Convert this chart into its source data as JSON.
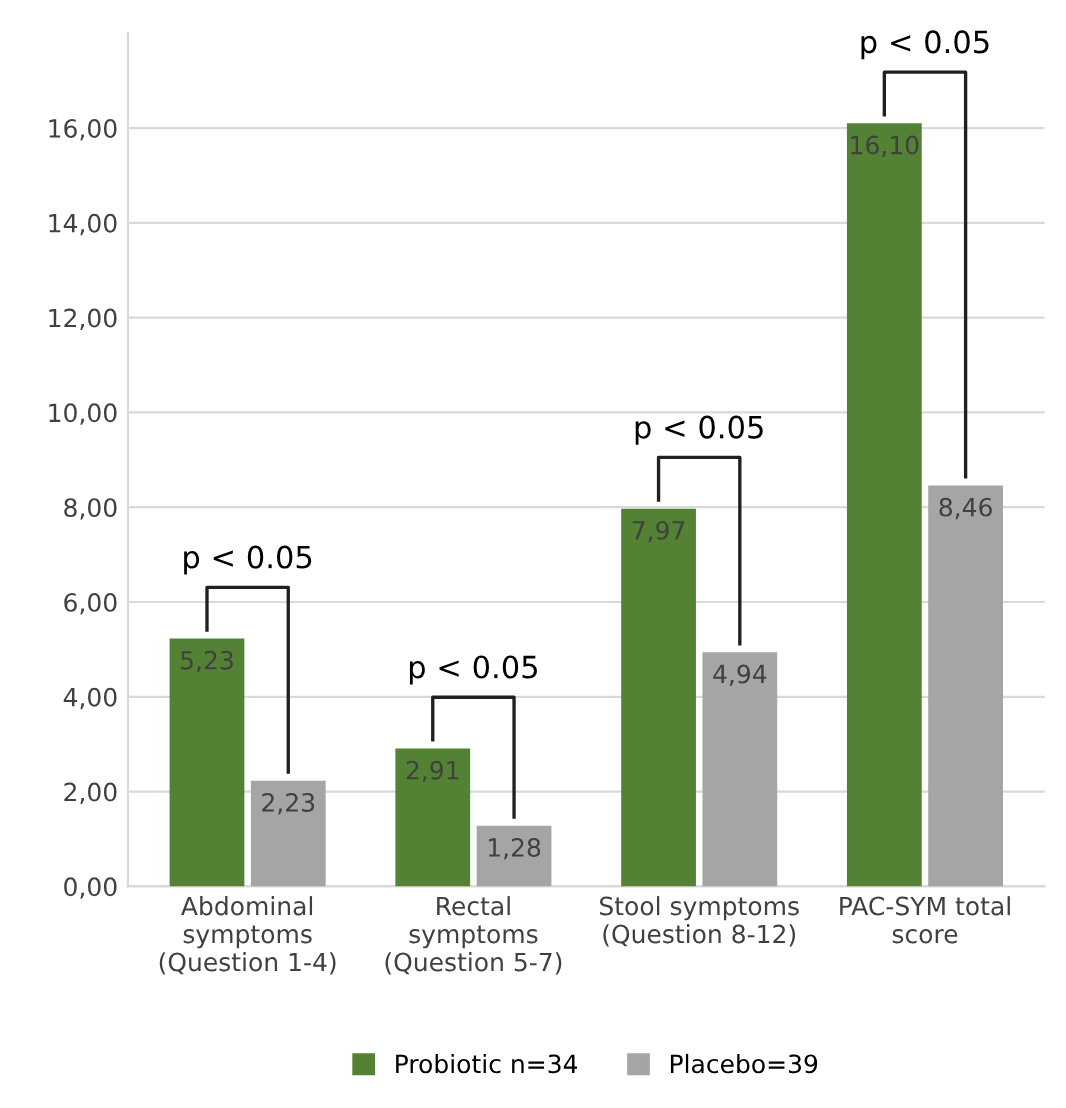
{
  "chart_data": {
    "type": "bar",
    "categories": [
      "Abdominal\nsymptoms\n(Question 1-4)",
      "Rectal\nsymptoms\n(Question 5-7)",
      "Stool symptoms\n(Question 8-12)",
      "PAC-SYM total\nscore"
    ],
    "series": [
      {
        "name": "Probiotic n=34",
        "color": "#548235",
        "values": [
          5.23,
          2.91,
          7.97,
          16.1
        ],
        "value_labels": [
          "5,23",
          "2,91",
          "7,97",
          "16,10"
        ]
      },
      {
        "name": "Placebo=39",
        "color": "#a5a5a5",
        "values": [
          2.23,
          1.28,
          4.94,
          8.46
        ],
        "value_labels": [
          "2,23",
          "1,28",
          "4,94",
          "8,46"
        ]
      }
    ],
    "ylim": [
      0,
      18
    ],
    "yticks": [
      {
        "value": 0,
        "label": "0,00"
      },
      {
        "value": 2,
        "label": "2,00"
      },
      {
        "value": 4,
        "label": "4,00"
      },
      {
        "value": 6,
        "label": "6,00"
      },
      {
        "value": 8,
        "label": "8,00"
      },
      {
        "value": 10,
        "label": "10,00"
      },
      {
        "value": 12,
        "label": "12,00"
      },
      {
        "value": 14,
        "label": "14,00"
      },
      {
        "value": 16,
        "label": "16,00"
      }
    ],
    "grid": "y",
    "legend": "bottom",
    "annotations": [
      "p < 0.05",
      "p < 0.05",
      "p < 0.05",
      "p < 0.05"
    ]
  }
}
